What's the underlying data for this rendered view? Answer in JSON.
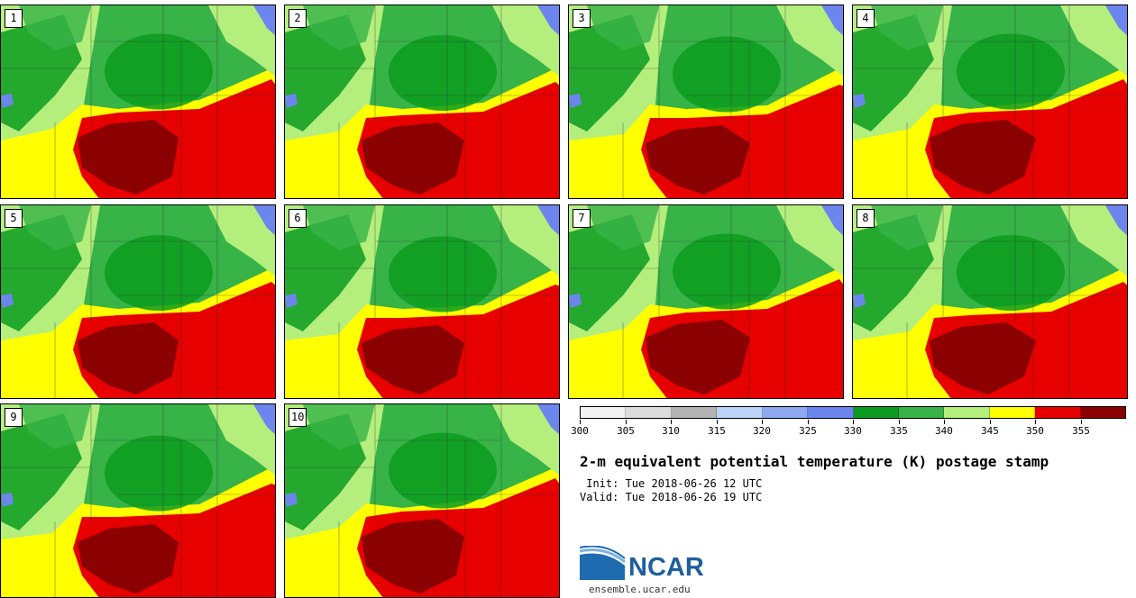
{
  "product": {
    "title": "2-m equivalent potential temperature (K) postage stamp",
    "init": " Init: Tue 2018-06-26 12 UTC",
    "valid": "Valid: Tue 2018-06-26 19 UTC"
  },
  "colorbar": {
    "ticks": [
      "300",
      "305",
      "310",
      "315",
      "320",
      "325",
      "330",
      "335",
      "340",
      "345",
      "350",
      "355"
    ],
    "colors": [
      "#f2f2f2",
      "#dcdcdc",
      "#b3b3b3",
      "#bcd3f7",
      "#8ea8f2",
      "#6c86ee",
      "#0b9b1f",
      "#37b347",
      "#b4ee7d",
      "#ffff00",
      "#e60000",
      "#8b0000"
    ]
  },
  "members": [
    {
      "label": "1"
    },
    {
      "label": "2"
    },
    {
      "label": "3"
    },
    {
      "label": "4"
    },
    {
      "label": "5"
    },
    {
      "label": "6"
    },
    {
      "label": "7"
    },
    {
      "label": "8"
    },
    {
      "label": "9"
    },
    {
      "label": "10"
    }
  ],
  "logo": {
    "text": "NCAR",
    "url": "ensemble.ucar.edu"
  },
  "map_colors": {
    "green_dark": "#0b9b1f",
    "green": "#37b347",
    "green_light": "#b4ee7d",
    "yellow": "#ffff00",
    "red": "#e60000",
    "dark_red": "#8b0000",
    "blue": "#6c86ee"
  }
}
